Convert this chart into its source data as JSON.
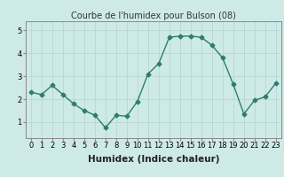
{
  "x": [
    0,
    1,
    2,
    3,
    4,
    5,
    6,
    7,
    8,
    9,
    10,
    11,
    12,
    13,
    14,
    15,
    16,
    17,
    18,
    19,
    20,
    21,
    22,
    23
  ],
  "y": [
    2.3,
    2.2,
    2.6,
    2.2,
    1.8,
    1.5,
    1.3,
    0.75,
    1.3,
    1.25,
    1.9,
    3.1,
    3.55,
    4.7,
    4.75,
    4.75,
    4.7,
    4.35,
    3.8,
    2.65,
    1.35,
    1.95,
    2.1,
    2.7
  ],
  "line_color": "#2e7d6e",
  "marker": "D",
  "markersize": 2.5,
  "linewidth": 1.0,
  "title": "Courbe de l'humidex pour Bulson (08)",
  "xlabel": "Humidex (Indice chaleur)",
  "ylabel": "",
  "xlim": [
    -0.5,
    23.5
  ],
  "ylim": [
    0.3,
    5.4
  ],
  "yticks": [
    1,
    2,
    3,
    4,
    5
  ],
  "xticks": [
    0,
    1,
    2,
    3,
    4,
    5,
    6,
    7,
    8,
    9,
    10,
    11,
    12,
    13,
    14,
    15,
    16,
    17,
    18,
    19,
    20,
    21,
    22,
    23
  ],
  "bg_color": "#ceeae7",
  "grid_color": "#b8d8d4",
  "title_fontsize": 7.0,
  "xlabel_fontsize": 7.5,
  "tick_fontsize": 6.0
}
